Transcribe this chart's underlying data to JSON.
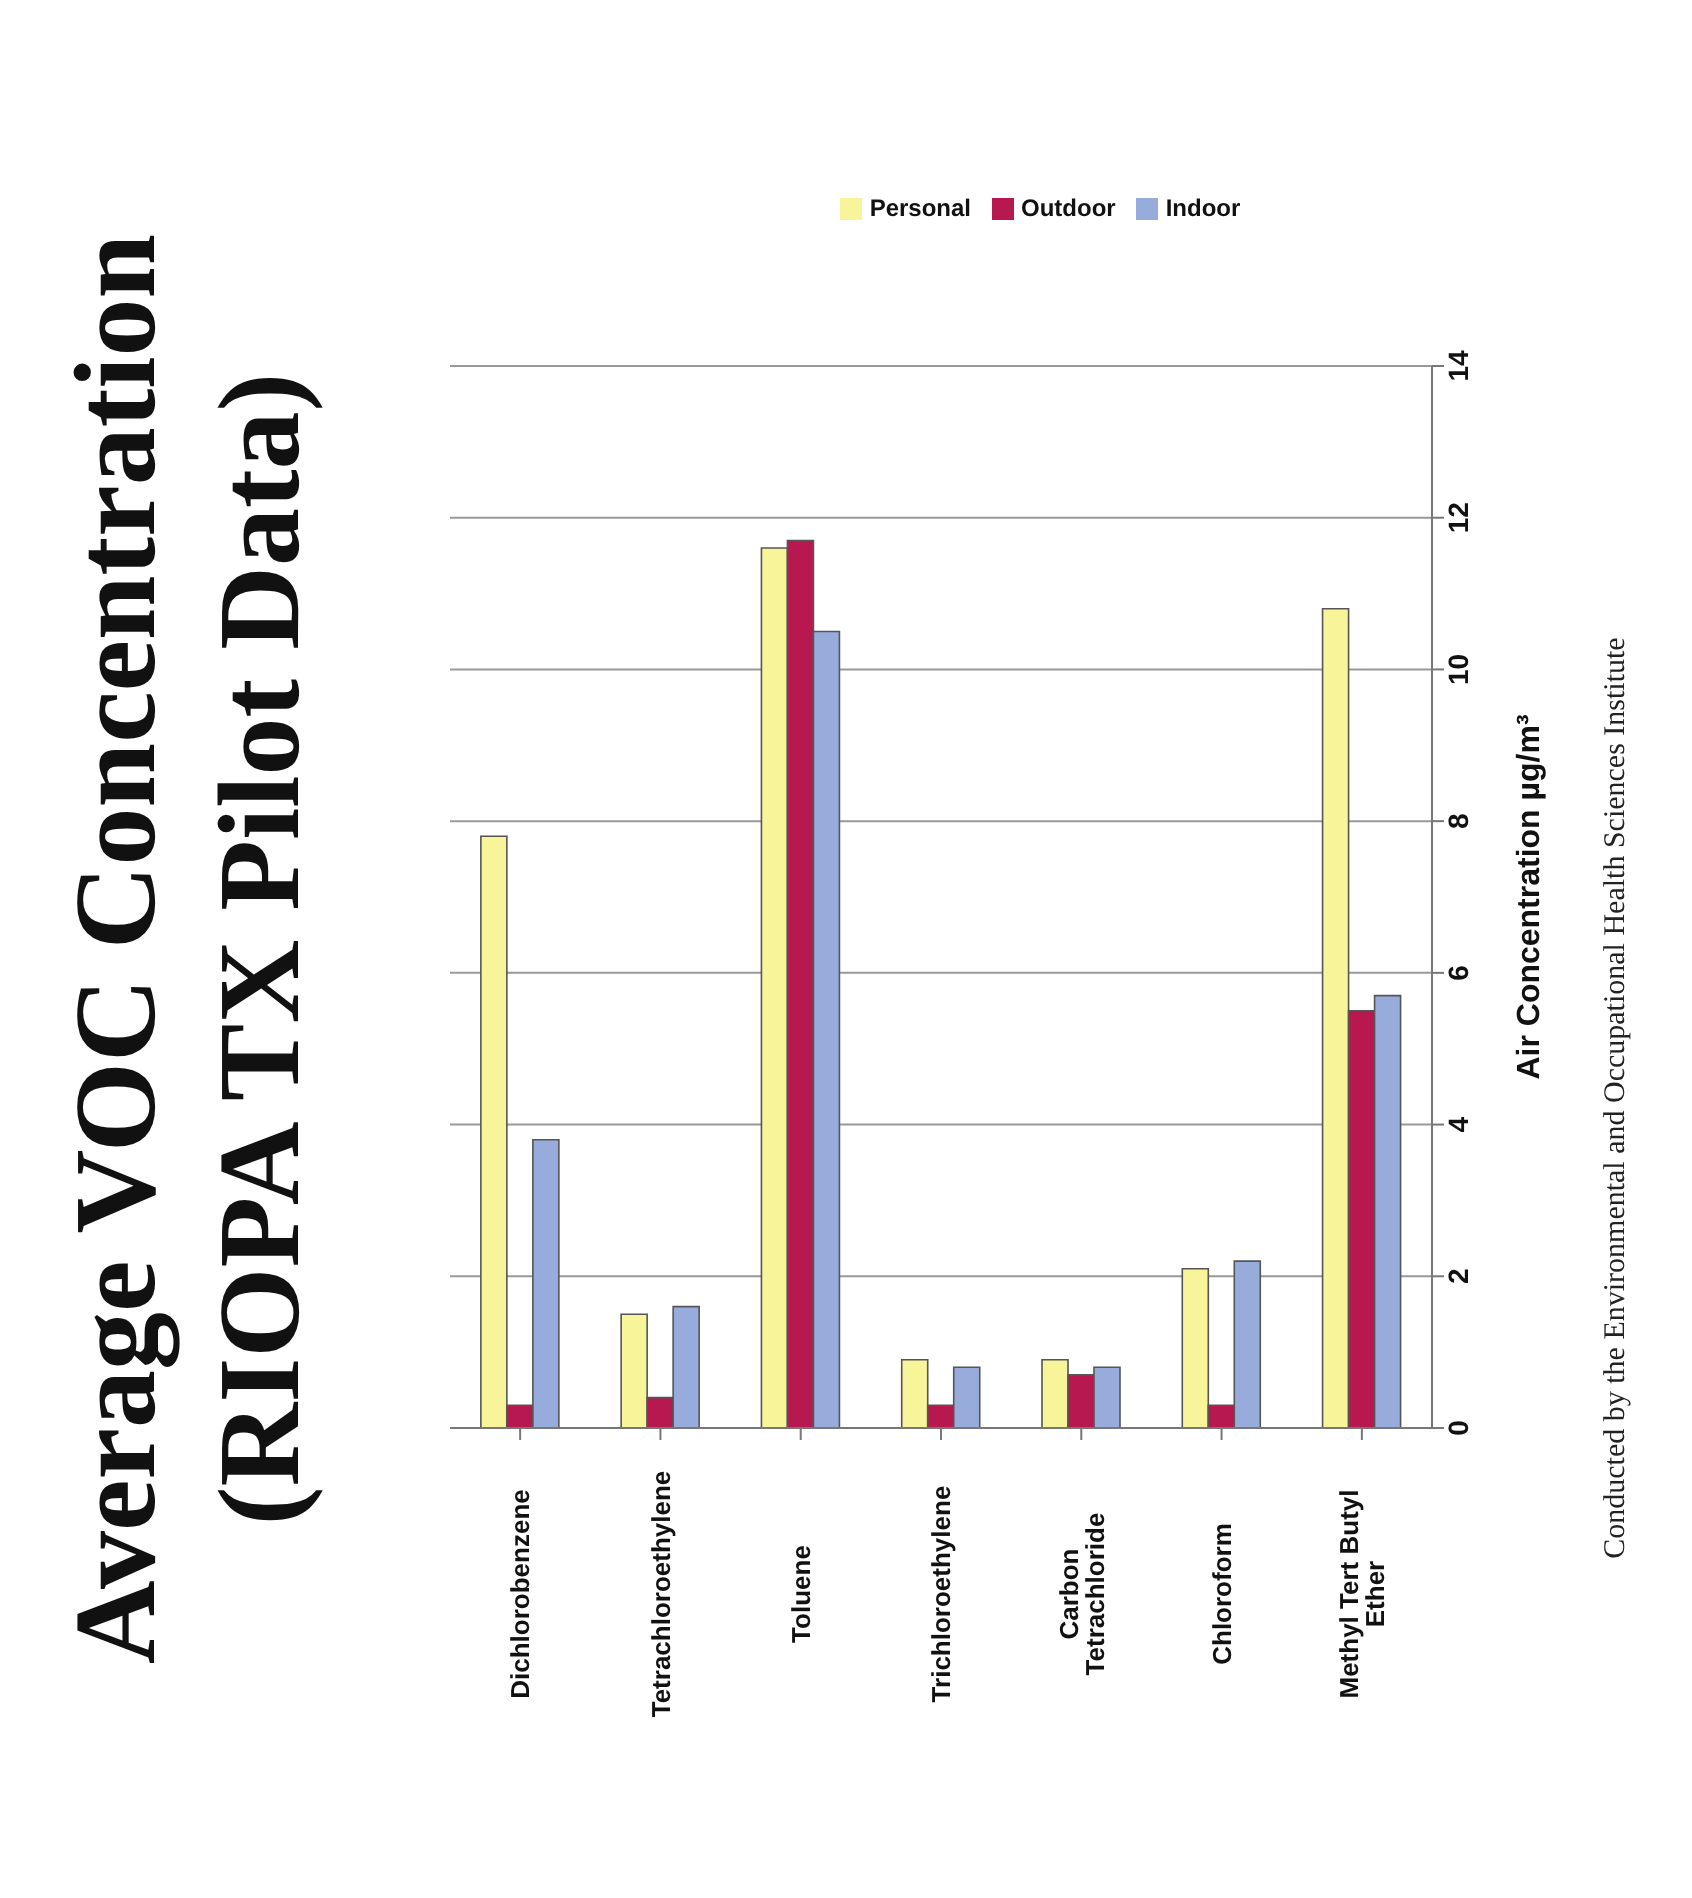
{
  "chart_data": {
    "type": "bar",
    "title": "Average VOC Concentration\n(RIOPA TX Pilot Data)",
    "ylabel": "Air Concentration µg/m³",
    "categories": [
      "Dichlorobenzene",
      "Tetrachloroethylene",
      "Toluene",
      "Trichloroethylene",
      "Carbon Tetrachloride",
      "Chloroform",
      "Methyl Tert Butyl Ether"
    ],
    "series": [
      {
        "name": "Personal",
        "color": "#f8f49a",
        "values": [
          7.8,
          1.5,
          11.6,
          0.9,
          0.9,
          2.1,
          10.8
        ]
      },
      {
        "name": "Outdoor",
        "color": "#b81850",
        "values": [
          0.3,
          0.4,
          11.7,
          0.3,
          0.7,
          0.3,
          5.5
        ]
      },
      {
        "name": "Indoor",
        "color": "#98acdc",
        "values": [
          3.8,
          1.6,
          10.5,
          0.8,
          0.8,
          2.2,
          5.7
        ]
      }
    ],
    "ylim": [
      0,
      14
    ],
    "yticks": [
      0,
      2,
      4,
      6,
      8,
      10,
      12,
      14
    ],
    "grid": "y",
    "legend": "top",
    "annotations": [
      "Conducted by the Environmental and Occupational Health Sciences Institute"
    ]
  }
}
